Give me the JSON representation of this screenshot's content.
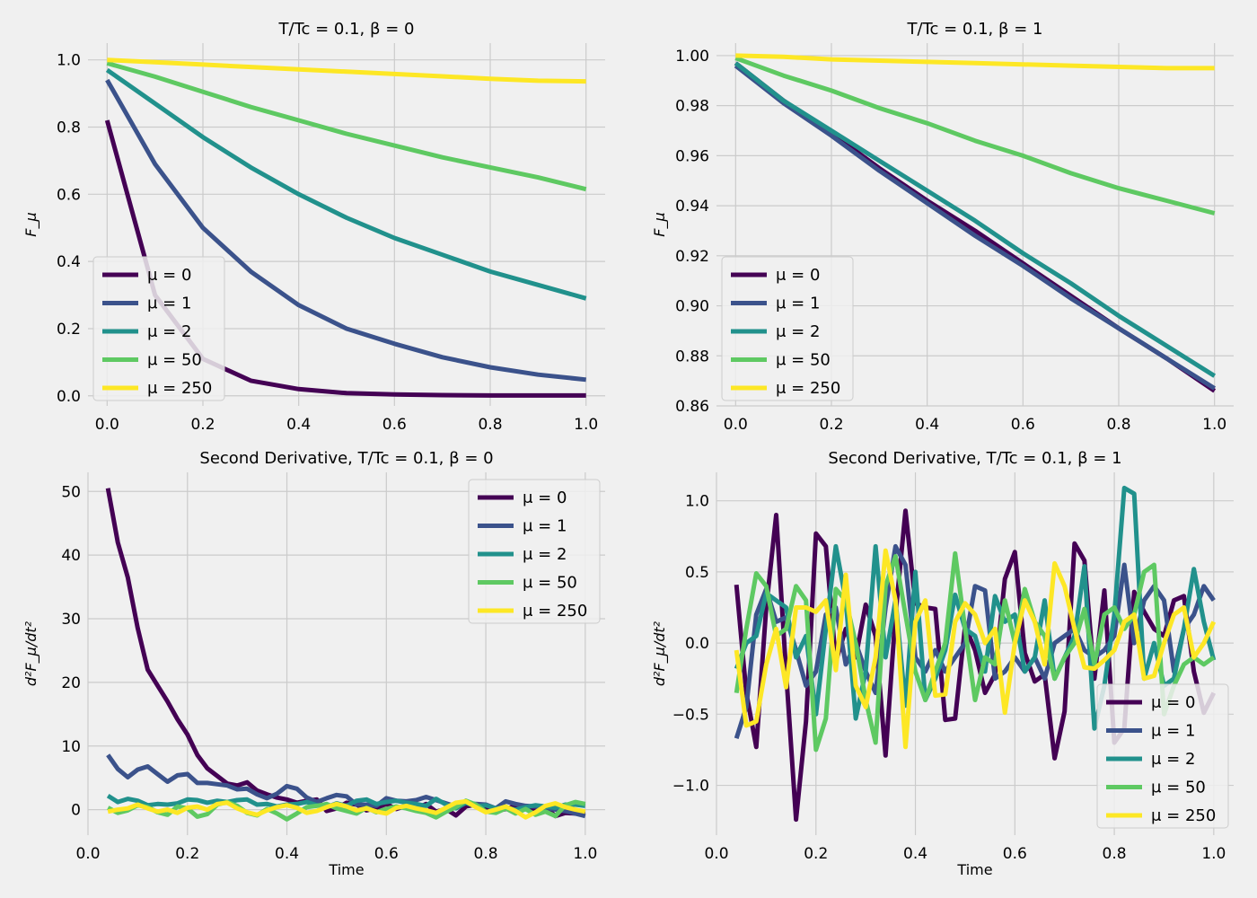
{
  "figure": {
    "background": "#f0f0f0"
  },
  "colors": {
    "mu0": "#440154",
    "mu1": "#3b528b",
    "mu2": "#21918c",
    "mu50": "#5ec962",
    "mu250": "#fde725"
  },
  "legend_labels": [
    "μ = 0",
    "μ = 1",
    "μ = 2",
    "μ = 50",
    "μ = 250"
  ],
  "chart_data": [
    {
      "type": "line",
      "title": "T/Tc = 0.1, β = 0",
      "xlabel": "",
      "ylabel": "F_μ",
      "xlim": [
        -0.04,
        1.04
      ],
      "ylim": [
        -0.03,
        1.05
      ],
      "xticks": [
        "0.0",
        "0.2",
        "0.4",
        "0.6",
        "0.8",
        "1.0"
      ],
      "yticks": [
        "0.0",
        "0.2",
        "0.4",
        "0.6",
        "0.8",
        "1.0"
      ],
      "grid": true,
      "legend": "lower-left",
      "x": [
        0.0,
        0.1,
        0.2,
        0.3,
        0.4,
        0.5,
        0.6,
        0.7,
        0.8,
        0.9,
        1.0
      ],
      "series": [
        {
          "name": "μ = 0",
          "values": [
            0.82,
            0.3,
            0.11,
            0.045,
            0.02,
            0.008,
            0.004,
            0.002,
            0.001,
            0.001,
            0.001
          ]
        },
        {
          "name": "μ = 1",
          "values": [
            0.94,
            0.69,
            0.5,
            0.37,
            0.27,
            0.2,
            0.155,
            0.115,
            0.085,
            0.063,
            0.048
          ]
        },
        {
          "name": "μ = 2",
          "values": [
            0.97,
            0.87,
            0.77,
            0.68,
            0.6,
            0.53,
            0.47,
            0.42,
            0.37,
            0.33,
            0.29
          ]
        },
        {
          "name": "μ = 50",
          "values": [
            0.99,
            0.95,
            0.905,
            0.86,
            0.82,
            0.78,
            0.745,
            0.71,
            0.68,
            0.65,
            0.615
          ]
        },
        {
          "name": "μ = 250",
          "values": [
            1.0,
            0.993,
            0.986,
            0.979,
            0.972,
            0.965,
            0.958,
            0.951,
            0.944,
            0.938,
            0.936
          ]
        }
      ]
    },
    {
      "type": "line",
      "title": "T/Tc = 0.1, β = 1",
      "xlabel": "",
      "ylabel": "F_μ",
      "xlim": [
        -0.04,
        1.04
      ],
      "ylim": [
        0.86,
        1.005
      ],
      "xticks": [
        "0.0",
        "0.2",
        "0.4",
        "0.6",
        "0.8",
        "1.0"
      ],
      "yticks": [
        "0.86",
        "0.88",
        "0.90",
        "0.92",
        "0.94",
        "0.96",
        "0.98",
        "1.00"
      ],
      "grid": true,
      "legend": "lower-left",
      "x": [
        0.0,
        0.1,
        0.2,
        0.3,
        0.4,
        0.5,
        0.6,
        0.7,
        0.8,
        0.9,
        1.0
      ],
      "series": [
        {
          "name": "μ = 0",
          "values": [
            0.997,
            0.982,
            0.969,
            0.955,
            0.942,
            0.93,
            0.917,
            0.904,
            0.891,
            0.879,
            0.866
          ]
        },
        {
          "name": "μ = 1",
          "values": [
            0.996,
            0.981,
            0.968,
            0.954,
            0.941,
            0.928,
            0.916,
            0.903,
            0.891,
            0.879,
            0.867
          ]
        },
        {
          "name": "μ = 2",
          "values": [
            0.997,
            0.982,
            0.97,
            0.958,
            0.946,
            0.934,
            0.921,
            0.909,
            0.896,
            0.884,
            0.872
          ]
        },
        {
          "name": "μ = 50",
          "values": [
            0.999,
            0.992,
            0.986,
            0.979,
            0.973,
            0.966,
            0.96,
            0.953,
            0.947,
            0.942,
            0.937
          ]
        },
        {
          "name": "μ = 250",
          "values": [
            1.0,
            0.9995,
            0.9985,
            0.998,
            0.9975,
            0.997,
            0.9965,
            0.996,
            0.9955,
            0.995,
            0.995
          ]
        }
      ]
    },
    {
      "type": "line",
      "title": "Second Derivative, T/Tc = 0.1, β = 0",
      "xlabel": "Time",
      "ylabel": "d²F_μ/dt²",
      "xlim": [
        0.0,
        1.04
      ],
      "ylim": [
        -4,
        53
      ],
      "xticks": [
        "0.0",
        "0.2",
        "0.4",
        "0.6",
        "0.8",
        "1.0"
      ],
      "yticks": [
        "0",
        "10",
        "20",
        "30",
        "40",
        "50"
      ],
      "grid": true,
      "legend": "upper-right",
      "x": [
        0.04,
        0.06,
        0.08,
        0.1,
        0.12,
        0.14,
        0.16,
        0.18,
        0.2,
        0.22,
        0.24,
        0.26,
        0.28,
        0.3,
        0.32,
        0.34,
        0.36,
        0.38,
        0.4,
        0.42,
        0.44,
        0.46,
        0.48,
        0.5,
        0.52,
        0.54,
        0.56,
        0.58,
        0.6,
        0.62,
        0.64,
        0.66,
        0.68,
        0.7,
        0.72,
        0.74,
        0.76,
        0.78,
        0.8,
        0.82,
        0.84,
        0.86,
        0.88,
        0.9,
        0.92,
        0.94,
        0.96,
        0.98,
        1.0
      ],
      "series": [
        {
          "name": "μ = 0",
          "values": [
            50.5,
            42,
            36.5,
            28.5,
            22,
            19.5,
            17,
            14.2,
            11.8,
            8.6,
            6.5,
            5.3,
            4.1,
            3.8,
            4.3,
            3.0,
            2.4,
            1.9,
            1.6,
            1.1,
            1.4,
            1.6,
            -0.2,
            0.2,
            1.1,
            0.8,
            -0.1,
            0.3,
            0.9,
            0.1,
            0.6,
            0.2,
            0.9,
            -0.3,
            0.1,
            -0.9,
            0.5,
            0.8,
            0.1,
            -0.2,
            0.1,
            0.6,
            0.3,
            -0.2,
            0.4,
            -1.0,
            -0.5,
            -0.6,
            -0.7
          ]
        },
        {
          "name": "μ = 1",
          "values": [
            8.6,
            6.4,
            5.1,
            6.3,
            6.8,
            5.6,
            4.4,
            5.4,
            5.6,
            4.2,
            4.2,
            4.0,
            3.8,
            3.2,
            3.3,
            2.4,
            1.8,
            2.5,
            3.7,
            3.3,
            1.9,
            1.2,
            1.8,
            2.3,
            2.1,
            0.8,
            0.8,
            0.6,
            1.8,
            1.4,
            1.3,
            1.5,
            2.0,
            1.5,
            1.0,
            0.5,
            1.1,
            0.9,
            0.8,
            0.2,
            1.3,
            0.9,
            0.6,
            0.5,
            0.3,
            0.0,
            -0.2,
            -0.6,
            -1.0
          ]
        },
        {
          "name": "μ = 2",
          "values": [
            2.2,
            1.2,
            1.7,
            1.4,
            0.7,
            0.9,
            0.8,
            1.0,
            1.6,
            1.5,
            1.1,
            1.4,
            1.2,
            1.5,
            1.6,
            0.8,
            0.9,
            0.5,
            0.8,
            0.9,
            1.2,
            0.7,
            0.4,
            1.0,
            0.6,
            1.4,
            1.6,
            0.9,
            1.2,
            1.4,
            1.1,
            0.9,
            0.6,
            1.7,
            0.8,
            0.2,
            1.1,
            0.5,
            0.7,
            0.2,
            0.3,
            0.0,
            0.4,
            0.7,
            0.5,
            0.3,
            0.8,
            0.8,
            0.6
          ]
        },
        {
          "name": "μ = 50",
          "values": [
            0.3,
            -0.5,
            -0.1,
            0.7,
            0.4,
            -0.4,
            -0.8,
            0.5,
            0.2,
            -1.1,
            -0.7,
            0.8,
            1.2,
            0.6,
            -0.5,
            -0.9,
            0.1,
            -0.6,
            -1.5,
            -0.6,
            0.4,
            0.6,
            0.9,
            0.2,
            -0.2,
            -0.6,
            0.3,
            -0.4,
            0.1,
            0.5,
            0.2,
            -0.2,
            -0.5,
            -1.2,
            -0.3,
            0.4,
            1.4,
            0.8,
            -0.3,
            -0.5,
            0.2,
            -0.6,
            0.1,
            -0.8,
            -0.3,
            -1.0,
            0.7,
            1.2,
            0.9
          ]
        },
        {
          "name": "μ = 250",
          "values": [
            -0.3,
            0.0,
            0.2,
            0.8,
            0.2,
            -0.3,
            0.0,
            -0.5,
            0.3,
            0.5,
            0.0,
            0.9,
            1.1,
            0.2,
            -0.4,
            -0.8,
            -0.1,
            0.4,
            0.7,
            0.3,
            -0.5,
            -0.2,
            0.4,
            0.9,
            0.5,
            -0.1,
            0.2,
            -0.3,
            -0.6,
            0.3,
            0.6,
            0.2,
            -0.1,
            -0.5,
            0.3,
            1.1,
            1.3,
            0.4,
            -0.4,
            0.0,
            0.5,
            -0.2,
            -1.2,
            -0.4,
            0.6,
            1.0,
            0.4,
            0.0,
            -0.3
          ]
        }
      ]
    },
    {
      "type": "line",
      "title": "Second Derivative, T/Tc = 0.1, β = 1",
      "xlabel": "Time",
      "ylabel": "d²F_μ/dt²",
      "xlim": [
        0.0,
        1.04
      ],
      "ylim": [
        -1.35,
        1.2
      ],
      "xticks": [
        "0.0",
        "0.2",
        "0.4",
        "0.6",
        "0.8",
        "1.0"
      ],
      "yticks": [
        "−1.0",
        "−0.5",
        "0.0",
        "0.5",
        "1.0"
      ],
      "grid": true,
      "legend": "lower-right",
      "x": [
        0.04,
        0.06,
        0.08,
        0.1,
        0.12,
        0.14,
        0.16,
        0.18,
        0.2,
        0.22,
        0.24,
        0.26,
        0.28,
        0.3,
        0.32,
        0.34,
        0.36,
        0.38,
        0.4,
        0.42,
        0.44,
        0.46,
        0.48,
        0.5,
        0.52,
        0.54,
        0.56,
        0.58,
        0.6,
        0.62,
        0.64,
        0.66,
        0.68,
        0.7,
        0.72,
        0.74,
        0.76,
        0.78,
        0.8,
        0.82,
        0.84,
        0.86,
        0.88,
        0.9,
        0.92,
        0.94,
        0.96,
        0.98,
        1.0
      ],
      "series": [
        {
          "name": "μ = 0",
          "values": [
            0.41,
            -0.35,
            -0.73,
            0.25,
            0.9,
            -0.2,
            -1.24,
            -0.55,
            0.77,
            0.68,
            -0.13,
            0.1,
            -0.1,
            0.27,
            0.05,
            -0.79,
            0.2,
            0.93,
            0.28,
            0.25,
            0.24,
            -0.54,
            -0.53,
            0.12,
            -0.05,
            -0.35,
            -0.22,
            0.45,
            0.64,
            -0.07,
            -0.27,
            -0.22,
            -0.81,
            -0.48,
            0.7,
            0.58,
            -0.25,
            0.37,
            -0.7,
            -0.6,
            0.36,
            0.22,
            0.1,
            0.05,
            0.3,
            0.33,
            -0.2,
            -0.49,
            -0.35
          ]
        },
        {
          "name": "μ = 1",
          "values": [
            -0.67,
            -0.45,
            0.2,
            0.38,
            0.15,
            0.18,
            -0.05,
            -0.3,
            -0.2,
            0.2,
            0.25,
            -0.15,
            0.0,
            -0.2,
            -0.35,
            0.25,
            0.68,
            0.55,
            -0.1,
            -0.2,
            -0.05,
            -0.2,
            -0.1,
            0.0,
            0.4,
            0.37,
            -0.25,
            -0.2,
            -0.1,
            -0.2,
            -0.1,
            -0.25,
            0.0,
            0.05,
            0.1,
            -0.05,
            -0.1,
            -0.05,
            0.05,
            0.55,
            0.0,
            0.3,
            0.4,
            0.3,
            -0.2,
            0.1,
            0.2,
            0.4,
            0.3
          ]
        },
        {
          "name": "μ = 2",
          "values": [
            -0.18,
            0.0,
            0.05,
            0.35,
            0.3,
            0.25,
            -0.1,
            0.05,
            -0.5,
            0.1,
            0.68,
            0.3,
            -0.53,
            -0.2,
            0.68,
            -0.1,
            0.3,
            -0.44,
            0.5,
            -0.4,
            -0.25,
            -0.05,
            0.34,
            0.1,
            0.05,
            -0.2,
            0.33,
            0.15,
            0.2,
            -0.2,
            -0.1,
            0.3,
            -0.25,
            -0.1,
            0.05,
            0.54,
            -0.6,
            -0.3,
            0.2,
            1.09,
            1.05,
            -0.25,
            0.0,
            -0.3,
            -0.25,
            0.1,
            0.52,
            0.15,
            -0.12
          ]
        },
        {
          "name": "μ = 50",
          "values": [
            -0.35,
            0.1,
            0.49,
            0.4,
            0.05,
            0.1,
            0.4,
            0.3,
            -0.75,
            -0.53,
            0.38,
            0.3,
            0.0,
            -0.4,
            -0.7,
            0.4,
            0.61,
            0.2,
            -0.2,
            -0.4,
            -0.2,
            0.0,
            0.63,
            0.1,
            -0.4,
            -0.1,
            -0.15,
            0.3,
            0.0,
            0.38,
            0.15,
            0.05,
            -0.25,
            -0.1,
            0.0,
            0.24,
            -0.15,
            0.2,
            0.25,
            0.1,
            0.2,
            0.5,
            0.55,
            -0.5,
            -0.3,
            -0.15,
            -0.1,
            -0.15,
            -0.1
          ]
        },
        {
          "name": "μ = 250",
          "values": [
            -0.05,
            -0.58,
            -0.55,
            -0.15,
            0.1,
            -0.31,
            0.25,
            0.25,
            0.22,
            0.3,
            -0.19,
            0.48,
            -0.3,
            -0.45,
            -0.1,
            0.65,
            0.3,
            -0.73,
            0.15,
            0.3,
            -0.37,
            -0.36,
            0.15,
            0.28,
            0.2,
            0.0,
            0.1,
            -0.49,
            0.0,
            0.3,
            0.15,
            -0.15,
            0.56,
            0.4,
            0.1,
            -0.17,
            -0.18,
            -0.12,
            -0.05,
            0.15,
            0.2,
            -0.25,
            -0.23,
            0.0,
            0.2,
            0.25,
            -0.1,
            0.0,
            0.15
          ]
        }
      ]
    }
  ]
}
